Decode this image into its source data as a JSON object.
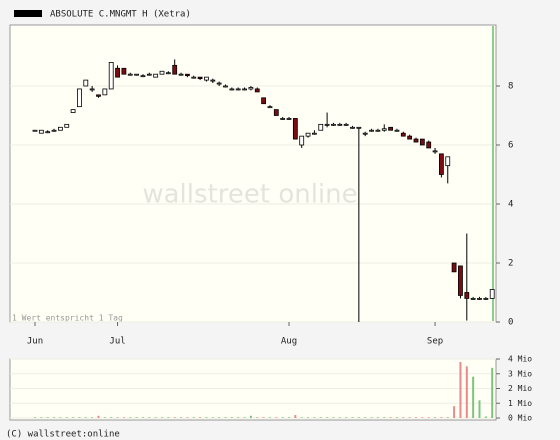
{
  "chart_data": [
    {
      "type": "candlestick",
      "title": "ABSOLUTE C.MNGMT H (Xetra)",
      "note": "1 Wert entspricht 1 Tag",
      "watermark": "wallstreet online",
      "footer": "(C) wallstreet:online",
      "categories": [
        "Jun",
        null,
        null,
        null,
        null,
        null,
        null,
        null,
        null,
        null,
        null,
        null,
        null,
        "Jul",
        null,
        null,
        null,
        null,
        null,
        null,
        null,
        null,
        null,
        null,
        null,
        null,
        null,
        null,
        null,
        null,
        null,
        null,
        null,
        null,
        null,
        null,
        null,
        null,
        null,
        null,
        "Aug",
        null,
        null,
        null,
        null,
        null,
        null,
        null,
        null,
        null,
        null,
        null,
        null,
        null,
        null,
        null,
        null,
        null,
        null,
        null,
        null,
        null,
        null,
        "Sep",
        null,
        null,
        null,
        null,
        null,
        null,
        null,
        null,
        null
      ],
      "open": [
        6.5,
        6.4,
        6.45,
        6.5,
        6.5,
        6.6,
        7.1,
        7.3,
        8.0,
        7.9,
        7.7,
        7.7,
        7.9,
        8.6,
        8.6,
        8.4,
        8.4,
        8.35,
        8.4,
        8.3,
        8.4,
        8.45,
        8.7,
        8.4,
        8.4,
        8.3,
        8.3,
        8.2,
        8.2,
        8.1,
        8.0,
        7.9,
        7.9,
        7.9,
        7.9,
        7.9,
        7.6,
        7.3,
        7.2,
        6.9,
        6.9,
        6.9,
        6.0,
        6.3,
        6.4,
        6.5,
        6.7,
        6.7,
        6.7,
        6.7,
        6.6,
        6.6,
        6.4,
        6.5,
        6.5,
        6.5,
        6.6,
        6.5,
        6.4,
        6.3,
        6.2,
        6.2,
        6.1,
        5.8,
        5.7,
        5.3,
        2.0,
        1.9,
        1.0,
        0.8,
        0.8,
        0.8,
        0.8
      ],
      "high": [
        6.5,
        6.5,
        6.5,
        6.55,
        6.6,
        6.7,
        7.2,
        7.9,
        8.2,
        8.0,
        7.7,
        7.9,
        8.8,
        8.7,
        8.6,
        8.45,
        8.4,
        8.4,
        8.45,
        8.4,
        8.5,
        8.5,
        8.9,
        8.45,
        8.4,
        8.35,
        8.3,
        8.3,
        8.25,
        8.15,
        8.05,
        7.95,
        7.95,
        7.95,
        8.0,
        7.95,
        7.6,
        7.35,
        7.2,
        6.95,
        6.95,
        6.9,
        6.3,
        6.4,
        6.5,
        6.7,
        7.1,
        6.75,
        6.75,
        6.75,
        6.65,
        6.6,
        6.45,
        6.55,
        6.55,
        6.7,
        6.6,
        6.55,
        6.45,
        6.35,
        6.25,
        6.2,
        6.15,
        5.9,
        5.7,
        5.6,
        2.0,
        1.9,
        3.0,
        0.85,
        0.85,
        0.85,
        1.1
      ],
      "low": [
        6.5,
        6.4,
        6.4,
        6.45,
        6.5,
        6.6,
        7.1,
        7.3,
        8.0,
        7.8,
        7.6,
        7.7,
        7.9,
        8.3,
        8.4,
        8.35,
        8.35,
        8.3,
        8.35,
        8.3,
        8.4,
        8.4,
        8.4,
        8.35,
        8.3,
        8.25,
        8.2,
        8.15,
        8.1,
        8.0,
        7.95,
        7.85,
        7.85,
        7.85,
        7.85,
        7.8,
        7.4,
        7.25,
        7.0,
        6.85,
        6.85,
        6.2,
        5.9,
        6.25,
        6.35,
        6.5,
        6.6,
        6.65,
        6.65,
        6.65,
        6.55,
        0,
        6.3,
        6.45,
        6.45,
        6.45,
        6.5,
        6.45,
        6.3,
        6.2,
        6.1,
        6.0,
        5.9,
        5.7,
        4.9,
        4.7,
        1.7,
        0.8,
        0.05,
        0.75,
        0.75,
        0.75,
        0.8
      ],
      "close": [
        6.5,
        6.5,
        6.45,
        6.5,
        6.6,
        6.7,
        7.2,
        7.9,
        8.2,
        7.9,
        7.65,
        7.9,
        8.8,
        8.3,
        8.4,
        8.4,
        8.4,
        8.35,
        8.4,
        8.4,
        8.5,
        8.45,
        8.4,
        8.4,
        8.35,
        8.3,
        8.25,
        8.3,
        8.2,
        8.1,
        8.0,
        7.9,
        7.9,
        7.9,
        7.95,
        7.8,
        7.4,
        7.3,
        7.0,
        6.9,
        6.9,
        6.2,
        6.3,
        6.4,
        6.4,
        6.7,
        6.7,
        6.7,
        6.7,
        6.7,
        6.6,
        6.6,
        6.4,
        6.5,
        6.5,
        6.55,
        6.5,
        6.5,
        6.3,
        6.2,
        6.1,
        6.0,
        5.9,
        5.8,
        5.0,
        5.6,
        1.7,
        0.9,
        0.8,
        0.8,
        0.8,
        0.8,
        1.1
      ],
      "up_color": "#ffffff",
      "down_color": "#7a0c12",
      "line_color": "#000000",
      "marker_color": "#8ccf8c",
      "ylim": [
        0,
        10
      ],
      "yticks": [
        0,
        2,
        4,
        6,
        8
      ],
      "grid": true
    },
    {
      "type": "bar",
      "values": [
        0.05,
        0.05,
        0.05,
        0.05,
        0.05,
        0.05,
        0.05,
        0.05,
        0.05,
        0.05,
        0.15,
        0.05,
        0.05,
        0.05,
        0.05,
        0.05,
        0.05,
        0.05,
        0.05,
        0.05,
        0.05,
        0.05,
        0.05,
        0.05,
        0.05,
        0.05,
        0.05,
        0.05,
        0.05,
        0.05,
        0.05,
        0.05,
        0.05,
        0.05,
        0.15,
        0.05,
        0.05,
        0.05,
        0.05,
        0.05,
        0.05,
        0.2,
        0.05,
        0.05,
        0.05,
        0.05,
        0.05,
        0.05,
        0.05,
        0.05,
        0.05,
        0.05,
        0.05,
        0.05,
        0.05,
        0.05,
        0.05,
        0.05,
        0.05,
        0.05,
        0.05,
        0.05,
        0.05,
        0.05,
        0.05,
        0.05,
        0.8,
        3.8,
        3.5,
        2.8,
        1.2,
        0.1,
        3.4
      ],
      "up_color": "#7cc47c",
      "down_color": "#e88a8a",
      "ylim": [
        0,
        4
      ],
      "yticks": [
        {
          "value": 0,
          "label": "0 Mio"
        },
        {
          "value": 1,
          "label": "1 Mio"
        },
        {
          "value": 2,
          "label": "2 Mio"
        },
        {
          "value": 3,
          "label": "3 Mio"
        },
        {
          "value": 4,
          "label": "4 Mio"
        }
      ],
      "grid": true
    }
  ]
}
